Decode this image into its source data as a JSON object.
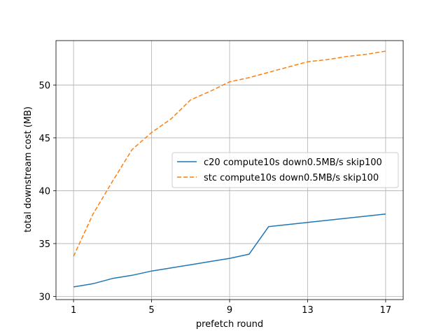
{
  "chart_data": {
    "type": "line",
    "title": "",
    "xlabel": "prefetch round",
    "ylabel": "total downstream cost (MB)",
    "xlim": [
      0.1,
      17.9
    ],
    "ylim": [
      29.7,
      54.2
    ],
    "xticks": [
      1,
      5,
      9,
      13,
      17
    ],
    "yticks": [
      30,
      35,
      40,
      45,
      50
    ],
    "grid": true,
    "legend_position": "center-right",
    "series": [
      {
        "name": "c20 compute10s down0.5MB/s skip100",
        "color": "#1f77b4",
        "style": "solid",
        "x": [
          1,
          2,
          3,
          4,
          5,
          6,
          7,
          8,
          9,
          10,
          11,
          12,
          13,
          14,
          15,
          16,
          17
        ],
        "y": [
          30.9,
          31.2,
          31.7,
          32.0,
          32.4,
          32.7,
          33.0,
          33.3,
          33.6,
          34.0,
          36.6,
          36.8,
          37.0,
          37.2,
          37.4,
          37.6,
          37.8
        ]
      },
      {
        "name": "stc compute10s down0.5MB/s skip100",
        "color": "#ff7f0e",
        "style": "dashed",
        "x": [
          1,
          2,
          3,
          4,
          5,
          6,
          7,
          8,
          9,
          10,
          11,
          12,
          13,
          14,
          15,
          16,
          17
        ],
        "y": [
          33.8,
          37.8,
          40.9,
          43.9,
          45.5,
          46.8,
          48.6,
          49.4,
          50.3,
          50.7,
          51.2,
          51.7,
          52.2,
          52.4,
          52.7,
          52.9,
          53.2
        ]
      }
    ]
  }
}
